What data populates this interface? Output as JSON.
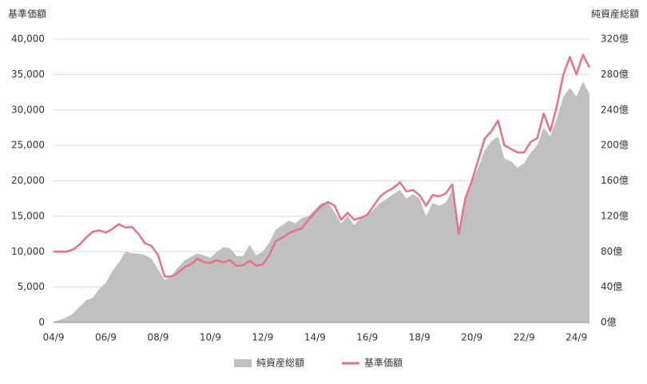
{
  "chart_data": {
    "type": "line-area",
    "y_label": "基準価額",
    "y2_label": "純資産総額",
    "categories": [
      "04/9",
      null,
      null,
      null,
      null,
      null,
      null,
      null,
      "06/9",
      null,
      null,
      null,
      null,
      null,
      null,
      null,
      "08/9",
      null,
      null,
      null,
      null,
      null,
      null,
      null,
      "10/9",
      null,
      null,
      null,
      null,
      null,
      null,
      null,
      "12/9",
      null,
      null,
      null,
      null,
      null,
      null,
      null,
      "14/9",
      null,
      null,
      null,
      null,
      null,
      null,
      null,
      "16/9",
      null,
      null,
      null,
      null,
      null,
      null,
      null,
      "18/9",
      null,
      null,
      null,
      null,
      null,
      null,
      null,
      "20/9",
      null,
      null,
      null,
      null,
      null,
      null,
      null,
      "22/9",
      null,
      null,
      null,
      null,
      null,
      null,
      null,
      "24/9",
      null,
      null
    ],
    "series": [
      {
        "name": "純資産総額",
        "color": "#c0c0c0",
        "kind": "area",
        "axis": "y2",
        "values": [
          1,
          3,
          6,
          10,
          18,
          25,
          28,
          38,
          45,
          58,
          68,
          80,
          78,
          78,
          76,
          72,
          60,
          48,
          52,
          62,
          70,
          74,
          78,
          76,
          73,
          80,
          85,
          84,
          75,
          75,
          88,
          76,
          80,
          90,
          105,
          110,
          115,
          112,
          118,
          120,
          128,
          135,
          135,
          125,
          112,
          120,
          110,
          118,
          120,
          128,
          135,
          140,
          145,
          150,
          140,
          145,
          140,
          120,
          135,
          132,
          135,
          150,
          105,
          140,
          160,
          175,
          195,
          205,
          210,
          185,
          182,
          175,
          180,
          192,
          200,
          220,
          210,
          230,
          255,
          265,
          255,
          272,
          258
        ]
      },
      {
        "name": "基準価額",
        "color": "#e8708a",
        "kind": "line",
        "values": [
          10000,
          10000,
          10000,
          10300,
          11000,
          12000,
          12800,
          13000,
          12700,
          13200,
          13900,
          13400,
          13500,
          12500,
          11200,
          10800,
          9500,
          6500,
          6500,
          7000,
          7800,
          8200,
          9000,
          8500,
          8400,
          8800,
          8500,
          8800,
          8000,
          8100,
          8700,
          8000,
          8200,
          9500,
          11500,
          12000,
          12600,
          13000,
          13300,
          14500,
          15500,
          16500,
          17000,
          16500,
          14500,
          15500,
          14500,
          14800,
          15200,
          16500,
          17800,
          18500,
          19000,
          19800,
          18500,
          18700,
          18000,
          16500,
          18000,
          17800,
          18200,
          19500,
          12500,
          17500,
          20000,
          23000,
          26000,
          27000,
          28500,
          25000,
          24500,
          24000,
          24000,
          25500,
          26000,
          29500,
          27000,
          30500,
          35000,
          37500,
          35000,
          37800,
          36000
        ]
      }
    ],
    "ylim": [
      0,
      40000
    ],
    "yticks": [
      0,
      {
        "value": 5000,
        "label": "5,000"
      },
      {
        "value": 10000,
        "label": "10,000"
      },
      {
        "value": 15000,
        "label": "15,000"
      },
      {
        "value": 20000,
        "label": "20,000"
      },
      {
        "value": 25000,
        "label": "25,000"
      },
      {
        "value": 30000,
        "label": "30,000"
      },
      {
        "value": 35000,
        "label": "35,000"
      },
      {
        "value": 40000,
        "label": "40,000"
      }
    ],
    "y2lim": [
      0,
      320
    ],
    "y2ticks": [
      {
        "value": 0,
        "label": "0億"
      },
      {
        "value": 40,
        "label": "40億"
      },
      {
        "value": 80,
        "label": "80億"
      },
      {
        "value": 120,
        "label": "120億"
      },
      {
        "value": 160,
        "label": "160億"
      },
      {
        "value": 200,
        "label": "200億"
      },
      {
        "value": 240,
        "label": "240億"
      },
      {
        "value": 280,
        "label": "280億"
      },
      {
        "value": 320,
        "label": "320億"
      }
    ],
    "grid": true,
    "legend": "bottom"
  }
}
